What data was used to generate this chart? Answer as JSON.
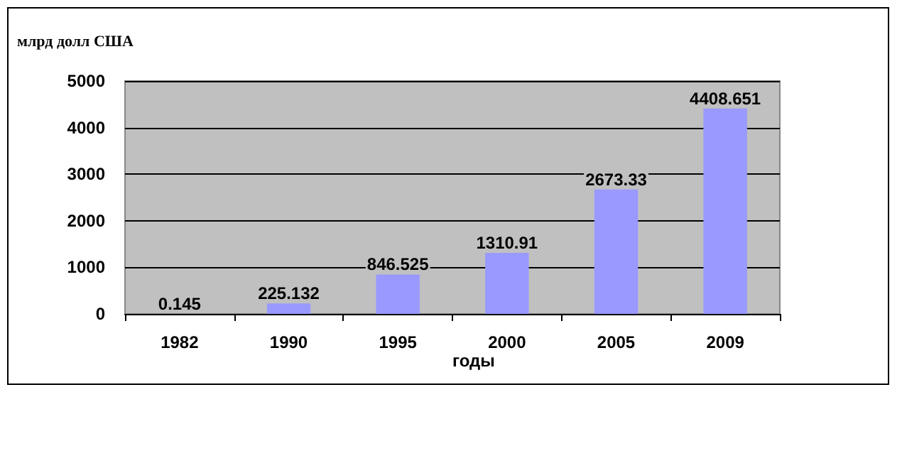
{
  "chart_data": {
    "type": "bar",
    "ylabel": "млрд долл США",
    "xlabel": "годы",
    "categories": [
      "1982",
      "1990",
      "1995",
      "2000",
      "2005",
      "2009"
    ],
    "values": [
      0.145,
      225.132,
      846.525,
      1310.91,
      2673.33,
      4408.651
    ],
    "color": "#9999ff",
    "ylim": [
      0,
      5000
    ],
    "yticks": [
      0,
      1000,
      2000,
      3000,
      4000,
      5000
    ],
    "grid": "y",
    "data_labels": true
  }
}
